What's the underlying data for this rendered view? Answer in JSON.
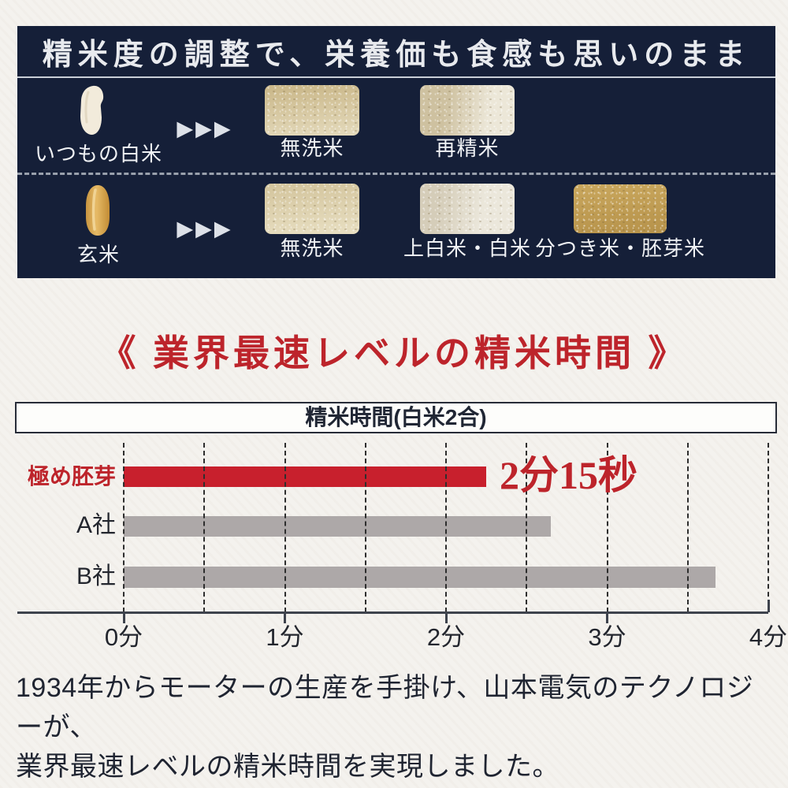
{
  "colors": {
    "panel_navy": "#151f38",
    "accent_red": "#bd242b",
    "bar_red": "#c8202d",
    "bar_gray": "#ada8a8",
    "page_background": "#f4f2ee",
    "hero_text": "#f0f2f5"
  },
  "hero": {
    "title": "精米度の調整で、栄養価も食感も思いのまま",
    "arrow_glyphs": "▶▶▶",
    "rows": [
      {
        "source": "いつもの白米",
        "source_icon": "white-rice-grain",
        "results": [
          {
            "label": "無洗米"
          },
          {
            "label": "再精米"
          }
        ]
      },
      {
        "source": "玄米",
        "source_icon": "brown-rice-grain",
        "results": [
          {
            "label": "無洗米"
          },
          {
            "label": "上白米・白米"
          },
          {
            "label": "分つき米・胚芽米"
          }
        ]
      }
    ]
  },
  "section": {
    "heading": "《 業界最速レベルの精米時間 》"
  },
  "chart_data": {
    "type": "bar",
    "orientation": "horizontal",
    "title": "精米時間(白米2合)",
    "categories": [
      "極め胚芽",
      "A社",
      "B社"
    ],
    "values": [
      2.25,
      2.65,
      3.67
    ],
    "unit": "分",
    "highlight_index": 0,
    "highlight_value_label": "2分15秒",
    "xlim": [
      0,
      4
    ],
    "x_tick_labels": [
      "0分",
      "1分",
      "2分",
      "3分",
      "4分"
    ],
    "grid_step": 0.5,
    "grid_style": "dashed",
    "legend": "none",
    "bar_colors": [
      "#c8202d",
      "#ada8a8",
      "#ada8a8"
    ]
  },
  "footer": {
    "line1": "1934年からモーターの生産を手掛け、山本電気のテクノロジーが、",
    "line2": "業界最速レベルの精米時間を実現しました。"
  }
}
